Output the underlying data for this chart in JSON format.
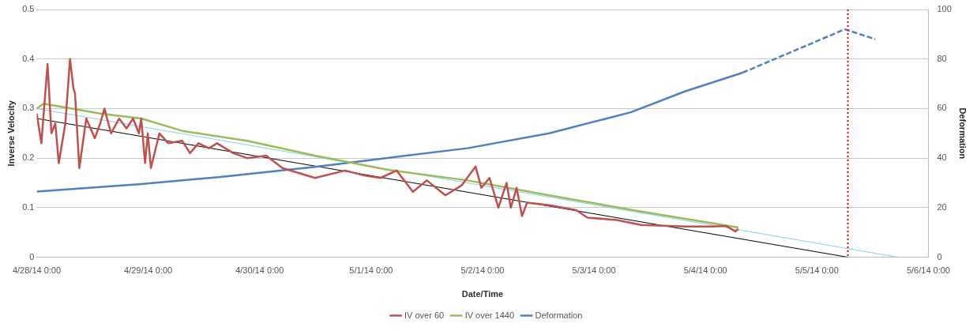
{
  "chart_data": {
    "type": "line",
    "xlabel": "Date/Time",
    "ylabel": "Inverse Velocity",
    "y2label": "Deformation",
    "xlim": [
      "--04-28T00:00",
      "--05-06T00:00"
    ],
    "xticks": [
      {
        "value": "--04-28T00:00",
        "label": "4/28/14 0:00"
      },
      {
        "value": "--04-29T00:00",
        "label": "4/29/14 0:00"
      },
      {
        "value": "--04-30T00:00",
        "label": "4/30/14 0:00"
      },
      {
        "value": "--05-01T00:00",
        "label": "5/1/14 0:00"
      },
      {
        "value": "--05-02T00:00",
        "label": "5/2/14 0:00"
      },
      {
        "value": "--05-03T00:00",
        "label": "5/3/14 0:00"
      },
      {
        "value": "--05-04T00:00",
        "label": "5/4/14 0:00"
      },
      {
        "value": "--05-05T00:00",
        "label": "5/5/14 0:00"
      },
      {
        "value": "--05-06T00:00",
        "label": "5/6/14 0:00"
      }
    ],
    "ylim": [
      0,
      0.5
    ],
    "yticks": [
      0,
      0.1,
      0.2,
      0.3,
      0.4,
      0.5
    ],
    "y2lim": [
      0,
      100
    ],
    "y2ticks": [
      0,
      20,
      40,
      60,
      80,
      100
    ],
    "grid": "y",
    "legend": "bottom",
    "marker": "none",
    "series": [
      {
        "name": "IV over 60",
        "color": "#c0504d",
        "x": [
          "--04-28T00:00",
          "--04-28T01:00",
          "--04-28T02:20",
          "--04-28T03:10",
          "--04-28T04:00",
          "--04-28T04:45",
          "--04-28T06:10",
          "--04-28T07:10",
          "--04-28T07:55",
          "--04-28T08:15",
          "--04-28T09:10",
          "--04-28T10:40",
          "--04-28T12:30",
          "--04-28T13:40",
          "--04-28T14:35",
          "--04-28T16:00",
          "--04-28T17:45",
          "--04-28T19:20",
          "--04-28T20:45",
          "--04-28T22:00",
          "--04-28T22:30",
          "--04-28T23:20",
          "--04-28T23:55",
          "--04-29T00:35",
          "--04-29T02:25",
          "--04-29T04:20",
          "--04-29T07:20",
          "--04-29T09:00",
          "--04-29T10:50",
          "--04-29T13:05",
          "--04-29T14:50",
          "--04-29T18:20",
          "--04-29T21:20",
          "--04-30T01:25",
          "--04-30T04:55",
          "--04-30T08:25",
          "--04-30T11:55",
          "--04-30T18:25",
          "--04-30T22:30",
          "--05-01T02:00",
          "--05-01T05:30",
          "--05-01T09:00",
          "--05-01T12:00",
          "--05-01T16:00",
          "--05-01T19:30",
          "--05-01T22:30",
          "--05-01T23:45",
          "--05-02T01:30",
          "--05-02T03:25",
          "--05-02T05:10",
          "--05-02T06:05",
          "--05-02T07:20",
          "--05-02T08:30",
          "--05-02T09:35",
          "--05-02T14:20",
          "--05-02T20:10",
          "--05-02T22:35",
          "--05-03T04:55",
          "--05-03T10:10",
          "--05-03T19:40",
          "--05-04T01:30",
          "--05-04T04:30",
          "--05-04T06:25",
          "--05-04T07:05"
        ],
        "values": [
          0.29,
          0.23,
          0.39,
          0.25,
          0.27,
          0.19,
          0.27,
          0.4,
          0.34,
          0.33,
          0.18,
          0.28,
          0.24,
          0.27,
          0.3,
          0.25,
          0.28,
          0.26,
          0.28,
          0.25,
          0.28,
          0.19,
          0.25,
          0.18,
          0.25,
          0.23,
          0.235,
          0.21,
          0.23,
          0.22,
          0.23,
          0.21,
          0.2,
          0.205,
          0.18,
          0.17,
          0.16,
          0.175,
          0.165,
          0.16,
          0.175,
          0.132,
          0.155,
          0.125,
          0.145,
          0.183,
          0.14,
          0.16,
          0.1,
          0.15,
          0.1,
          0.14,
          0.083,
          0.11,
          0.105,
          0.095,
          0.08,
          0.075,
          0.065,
          0.062,
          0.062,
          0.063,
          0.052,
          0.057
        ]
      },
      {
        "name": "IV over 1440",
        "color": "#9bbb59",
        "x": [
          "--04-28T00:00",
          "--04-28T01:30",
          "--04-28T13:40",
          "--04-28T22:30",
          "--04-29T07:20",
          "--04-29T21:20",
          "--04-30T11:55",
          "--05-01T03:10",
          "--05-01T20:45",
          "--05-02T14:20",
          "--05-03T09:40",
          "--05-04T07:05"
        ],
        "values": [
          0.3,
          0.31,
          0.29,
          0.28,
          0.255,
          0.235,
          0.205,
          0.177,
          0.155,
          0.125,
          0.093,
          0.06
        ]
      },
      {
        "name": "Deformation",
        "color": "#4f81bd",
        "axis": "y2",
        "x": [
          "--04-28T00:00",
          "--04-28T22:30",
          "--04-29T16:00",
          "--04-30T11:55",
          "--05-01T03:10",
          "--05-01T20:45",
          "--05-02T14:20",
          "--05-03T07:55",
          "--05-03T19:40",
          "--05-04T08:00"
        ],
        "values": [
          26.5,
          29.5,
          32.5,
          36.5,
          40,
          44,
          50,
          58.5,
          67,
          74.5
        ]
      },
      {
        "color": "#4f81bd",
        "axis": "y2",
        "line_style": "dashed",
        "x": [
          "--05-04T08:00",
          "--05-05T06:00",
          "--05-05T12:35"
        ],
        "values": [
          74.5,
          92,
          88
        ]
      },
      {
        "color": "#000000",
        "x": [
          "--04-28T00:00",
          "--05-05T06:40"
        ],
        "values": [
          0.28,
          0
        ]
      },
      {
        "color": "#7fd3e8",
        "x": [
          "--04-28T00:00",
          "--05-05T17:25"
        ],
        "values": [
          0.3,
          0
        ]
      }
    ],
    "ref_lines": [
      {
        "axis": "x",
        "value": "--05-05T06:40",
        "color": "#ff0000",
        "line_style": "dotted"
      }
    ]
  }
}
